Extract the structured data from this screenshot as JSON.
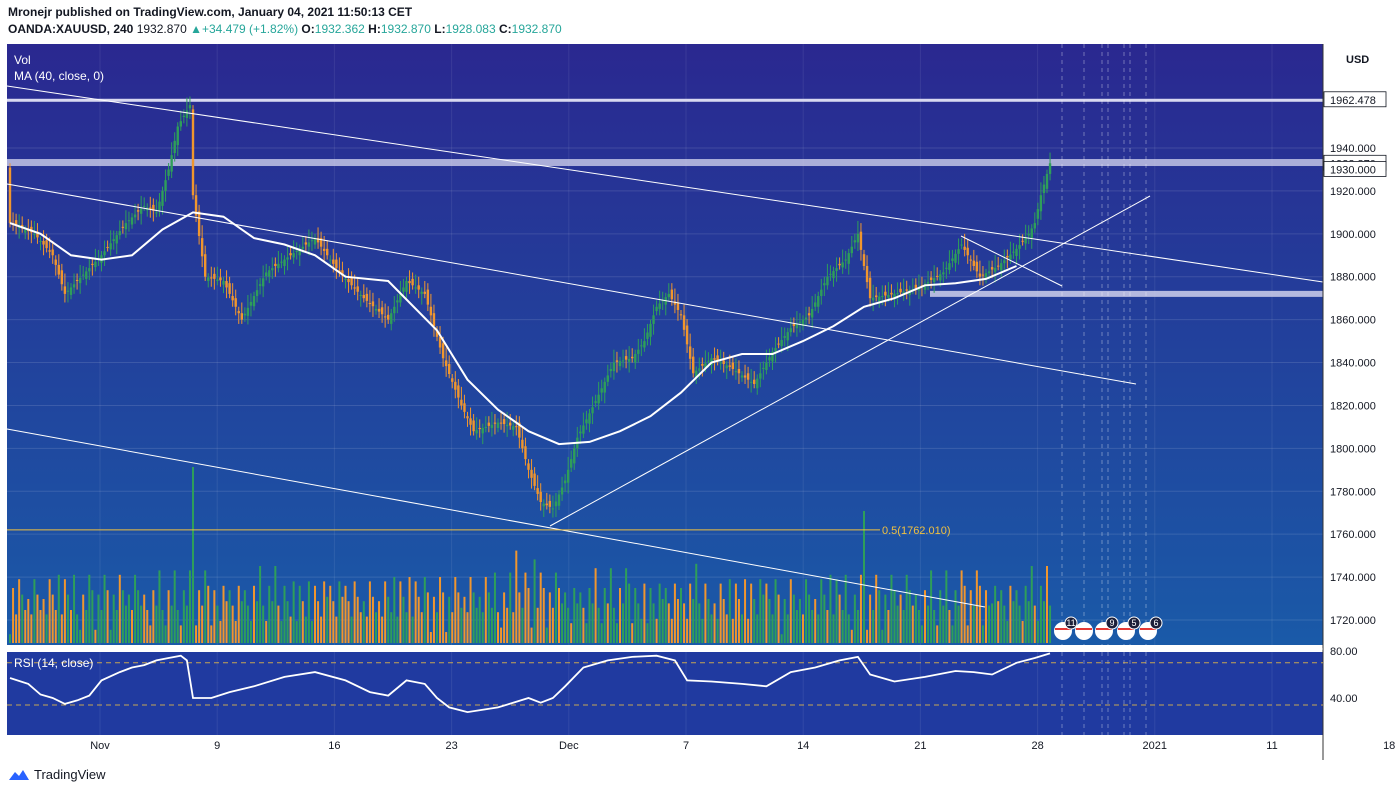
{
  "header": {
    "publish_line": "Mronejr published on TradingView.com, January 04, 2021 11:50:13 CET",
    "symbol": "OANDA:XAUUSD, 240",
    "last": "1932.870",
    "change": "+34.479 (+1.82%)",
    "open_label": "O:",
    "open": "1932.362",
    "high_label": "H:",
    "high": "1932.870",
    "low_label": "L:",
    "low": "1928.083",
    "close_label": "C:",
    "close": "1932.870"
  },
  "footer": {
    "brand": "TradingView"
  },
  "colors": {
    "background_top": "#2a2890",
    "background_bottom": "#1a5aa8",
    "bull": "#2e9e5a",
    "bear": "#f0962e",
    "ma": "#ffffff",
    "fib": "#f0c040",
    "price_axis_bg": "#ffffff"
  },
  "chart_data": [
    {
      "type": "candlestick",
      "panel": "price",
      "title": "",
      "axis_unit": "USD",
      "ylim": [
        1710,
        1960
      ],
      "y_ticks": [
        "1720.000",
        "1740.000",
        "1760.000",
        "1780.000",
        "1800.000",
        "1820.000",
        "1840.000",
        "1860.000",
        "1880.000",
        "1900.000",
        "1920.000",
        "1940.000"
      ],
      "x_ticks": [
        "Nov",
        "9",
        "16",
        "23",
        "Dec",
        "7",
        "14",
        "21",
        "28",
        "2021",
        "11",
        "18"
      ],
      "price_labels": [
        "1962.478",
        "1932.870",
        "1930.000"
      ],
      "indicator_labels": [
        "Vol",
        "MA (40, close, 0)"
      ],
      "annotation": "0.5(1762.010)",
      "event_badges": [
        "11",
        "9",
        "5",
        "6"
      ],
      "close_path": [
        [
          0,
          1905
        ],
        [
          8,
          1900
        ],
        [
          14,
          1890
        ],
        [
          18,
          1872
        ],
        [
          22,
          1878
        ],
        [
          30,
          1890
        ],
        [
          38,
          1905
        ],
        [
          44,
          1913
        ],
        [
          48,
          1910
        ],
        [
          52,
          1930
        ],
        [
          55,
          1950
        ],
        [
          57,
          1955
        ],
        [
          59,
          1960
        ],
        [
          60,
          1918
        ],
        [
          64,
          1880
        ],
        [
          70,
          1878
        ],
        [
          76,
          1860
        ],
        [
          84,
          1882
        ],
        [
          92,
          1890
        ],
        [
          100,
          1898
        ],
        [
          108,
          1882
        ],
        [
          116,
          1870
        ],
        [
          124,
          1860
        ],
        [
          130,
          1878
        ],
        [
          136,
          1872
        ],
        [
          142,
          1842
        ],
        [
          148,
          1820
        ],
        [
          152,
          1808
        ],
        [
          160,
          1812
        ],
        [
          166,
          1810
        ],
        [
          170,
          1790
        ],
        [
          174,
          1775
        ],
        [
          178,
          1772
        ],
        [
          182,
          1785
        ],
        [
          186,
          1805
        ],
        [
          192,
          1822
        ],
        [
          198,
          1840
        ],
        [
          204,
          1842
        ],
        [
          208,
          1850
        ],
        [
          212,
          1866
        ],
        [
          216,
          1872
        ],
        [
          220,
          1862
        ],
        [
          224,
          1835
        ],
        [
          230,
          1842
        ],
        [
          236,
          1838
        ],
        [
          244,
          1830
        ],
        [
          250,
          1845
        ],
        [
          256,
          1856
        ],
        [
          262,
          1862
        ],
        [
          268,
          1880
        ],
        [
          274,
          1888
        ],
        [
          278,
          1900
        ],
        [
          282,
          1870
        ],
        [
          290,
          1872
        ],
        [
          298,
          1875
        ],
        [
          306,
          1882
        ],
        [
          312,
          1895
        ],
        [
          318,
          1880
        ],
        [
          324,
          1885
        ],
        [
          330,
          1893
        ],
        [
          334,
          1900
        ],
        [
          336,
          1905
        ],
        [
          338,
          1918
        ],
        [
          341,
          1932.87
        ]
      ],
      "ma_path": [
        [
          0,
          1905
        ],
        [
          10,
          1900
        ],
        [
          20,
          1890
        ],
        [
          30,
          1888
        ],
        [
          40,
          1890
        ],
        [
          50,
          1902
        ],
        [
          60,
          1910
        ],
        [
          70,
          1908
        ],
        [
          80,
          1898
        ],
        [
          90,
          1895
        ],
        [
          100,
          1890
        ],
        [
          110,
          1880
        ],
        [
          124,
          1878
        ],
        [
          140,
          1855
        ],
        [
          150,
          1832
        ],
        [
          160,
          1818
        ],
        [
          170,
          1808
        ],
        [
          180,
          1802
        ],
        [
          190,
          1803
        ],
        [
          200,
          1808
        ],
        [
          210,
          1815
        ],
        [
          220,
          1826
        ],
        [
          230,
          1840
        ],
        [
          240,
          1844
        ],
        [
          250,
          1844
        ],
        [
          260,
          1850
        ],
        [
          270,
          1857
        ],
        [
          280,
          1866
        ],
        [
          290,
          1870
        ],
        [
          300,
          1876
        ],
        [
          310,
          1877
        ],
        [
          320,
          1879
        ],
        [
          330,
          1885
        ]
      ],
      "volume": {
        "spikes": [
          [
            1,
            25
          ],
          [
            60,
            80
          ],
          [
            166,
            42
          ],
          [
            172,
            38
          ],
          [
            280,
            60
          ],
          [
            322,
            18
          ]
        ]
      }
    },
    {
      "type": "line",
      "panel": "rsi",
      "series": [
        {
          "name": "RSI (14, close)"
        }
      ],
      "ylim": [
        25,
        85
      ],
      "y_ticks": [
        "40.00",
        "80.00"
      ],
      "bands": [
        34,
        70
      ],
      "values": [
        [
          0,
          57
        ],
        [
          6,
          52
        ],
        [
          10,
          43
        ],
        [
          14,
          40
        ],
        [
          18,
          35
        ],
        [
          22,
          38
        ],
        [
          26,
          42
        ],
        [
          30,
          55
        ],
        [
          36,
          62
        ],
        [
          40,
          66
        ],
        [
          44,
          68
        ],
        [
          48,
          72
        ],
        [
          52,
          74
        ],
        [
          56,
          76
        ],
        [
          58,
          72
        ],
        [
          60,
          40
        ],
        [
          66,
          40
        ],
        [
          72,
          45
        ],
        [
          80,
          50
        ],
        [
          90,
          58
        ],
        [
          100,
          62
        ],
        [
          110,
          55
        ],
        [
          118,
          45
        ],
        [
          124,
          42
        ],
        [
          130,
          55
        ],
        [
          136,
          52
        ],
        [
          140,
          40
        ],
        [
          144,
          32
        ],
        [
          150,
          28
        ],
        [
          160,
          32
        ],
        [
          170,
          40
        ],
        [
          174,
          36
        ],
        [
          178,
          40
        ],
        [
          182,
          50
        ],
        [
          188,
          66
        ],
        [
          196,
          72
        ],
        [
          204,
          75
        ],
        [
          212,
          76
        ],
        [
          218,
          72
        ],
        [
          222,
          55
        ],
        [
          230,
          54
        ],
        [
          240,
          52
        ],
        [
          248,
          50
        ],
        [
          256,
          62
        ],
        [
          264,
          66
        ],
        [
          272,
          72
        ],
        [
          278,
          75
        ],
        [
          282,
          60
        ],
        [
          290,
          54
        ],
        [
          300,
          58
        ],
        [
          310,
          63
        ],
        [
          316,
          62
        ],
        [
          322,
          60
        ],
        [
          330,
          70
        ],
        [
          336,
          74
        ],
        [
          341,
          78
        ]
      ]
    }
  ]
}
